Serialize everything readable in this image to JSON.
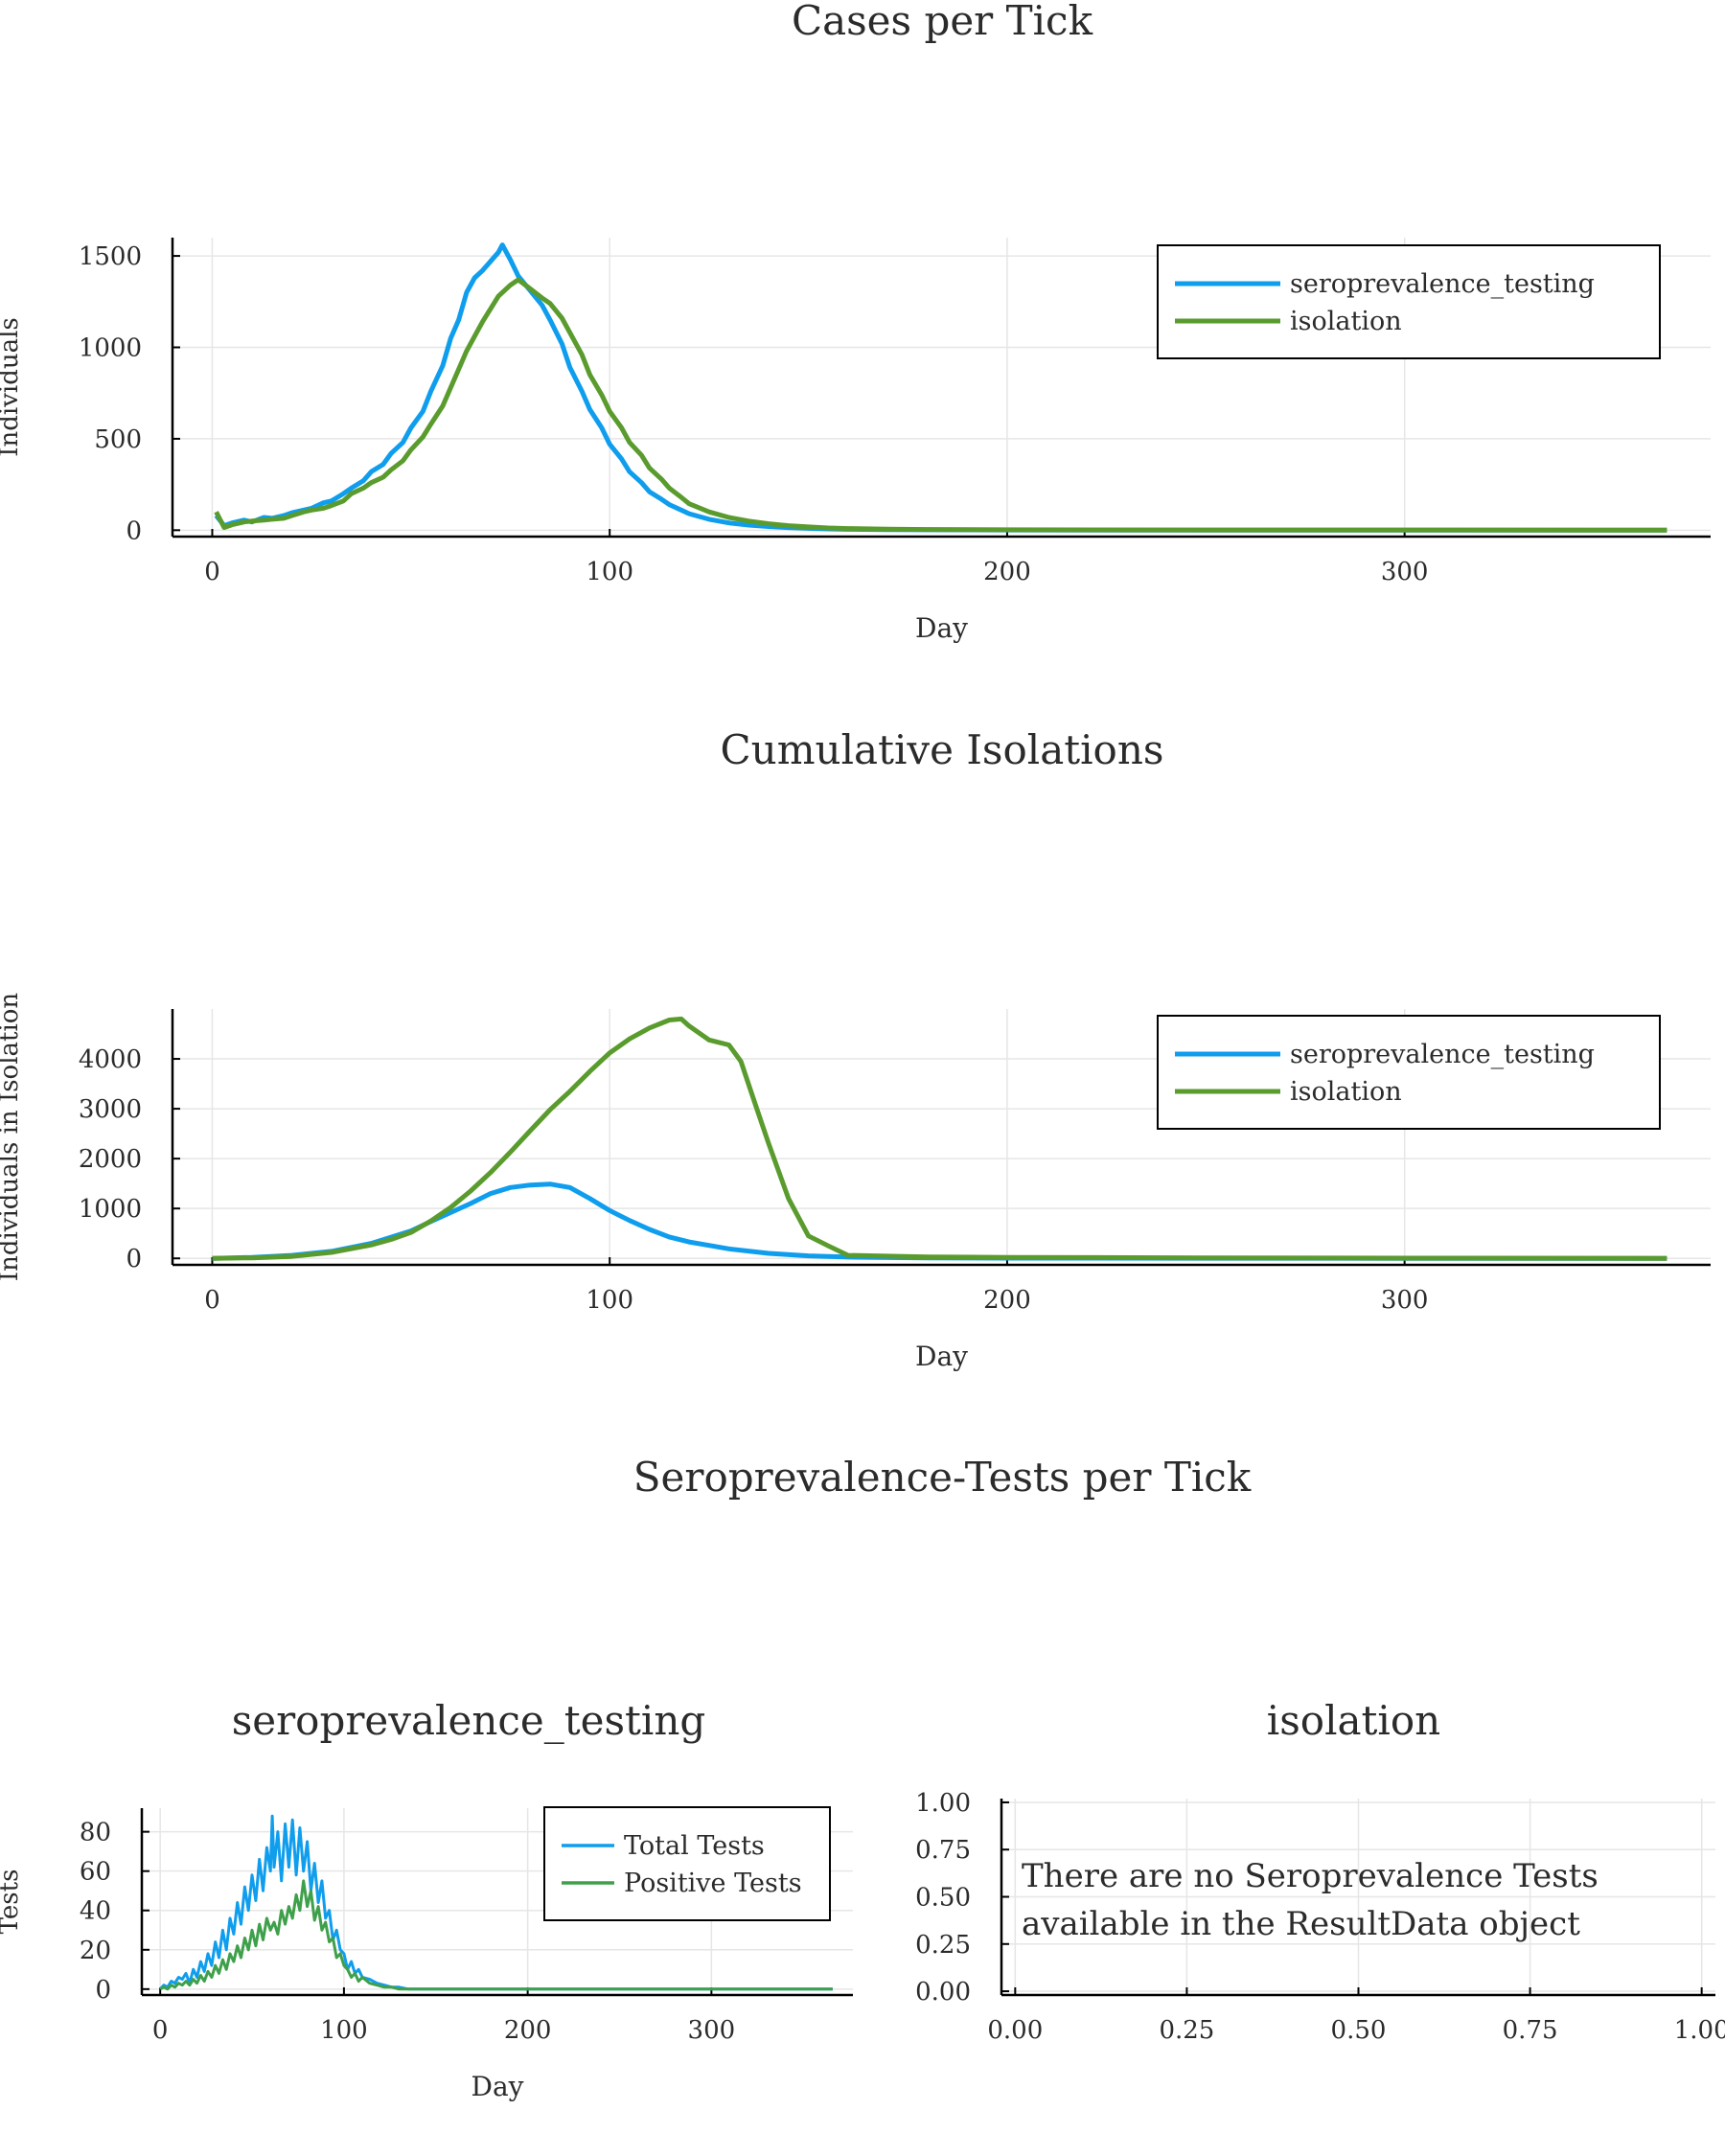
{
  "chart_data": [
    {
      "type": "line",
      "title": "Cases per Tick",
      "xlabel": "Day",
      "ylabel": "Individuals",
      "xlim": [
        -10,
        377
      ],
      "ylim": [
        -35,
        1600
      ],
      "xticks": [
        0,
        100,
        200,
        300
      ],
      "yticks": [
        0,
        500,
        1000,
        1500
      ],
      "xtick_labels": [
        "0",
        "100",
        "200",
        "300"
      ],
      "ytick_labels": [
        "0",
        "500",
        "1000",
        "1500"
      ],
      "grid": true,
      "legend_position": "top-right",
      "series": [
        {
          "name": "seroprevalence_testing",
          "color": "#0f9ded",
          "x": [
            1,
            3,
            5,
            8,
            10,
            13,
            15,
            18,
            20,
            23,
            25,
            28,
            30,
            33,
            35,
            38,
            40,
            43,
            45,
            48,
            50,
            53,
            55,
            58,
            60,
            62,
            64,
            66,
            68,
            70,
            72,
            73,
            75,
            77,
            80,
            83,
            85,
            88,
            90,
            93,
            95,
            98,
            100,
            103,
            105,
            108,
            110,
            113,
            115,
            118,
            120,
            125,
            130,
            135,
            140,
            145,
            150,
            155,
            160,
            170,
            180,
            200,
            250,
            300,
            366
          ],
          "y": [
            80,
            25,
            40,
            55,
            45,
            70,
            65,
            80,
            95,
            110,
            120,
            150,
            160,
            200,
            230,
            270,
            320,
            360,
            420,
            480,
            560,
            650,
            760,
            900,
            1050,
            1150,
            1300,
            1380,
            1420,
            1470,
            1520,
            1560,
            1480,
            1390,
            1310,
            1230,
            1150,
            1020,
            890,
            760,
            660,
            560,
            470,
            390,
            320,
            260,
            210,
            170,
            140,
            110,
            90,
            60,
            40,
            28,
            20,
            14,
            10,
            7,
            5,
            3,
            2,
            1,
            0,
            0,
            0
          ]
        },
        {
          "name": "isolation",
          "color": "#5a9b2e",
          "x": [
            1,
            3,
            5,
            8,
            10,
            13,
            15,
            18,
            20,
            23,
            25,
            28,
            30,
            33,
            35,
            38,
            40,
            43,
            45,
            48,
            50,
            53,
            55,
            58,
            60,
            62,
            64,
            66,
            68,
            70,
            72,
            75,
            77,
            80,
            83,
            85,
            88,
            90,
            93,
            95,
            98,
            100,
            103,
            105,
            108,
            110,
            113,
            115,
            118,
            120,
            125,
            130,
            135,
            140,
            145,
            150,
            155,
            160,
            170,
            180,
            200,
            250,
            300,
            366
          ],
          "y": [
            100,
            15,
            30,
            45,
            50,
            55,
            60,
            65,
            80,
            100,
            110,
            120,
            135,
            160,
            200,
            230,
            260,
            290,
            330,
            380,
            440,
            510,
            580,
            680,
            780,
            880,
            980,
            1060,
            1140,
            1210,
            1280,
            1340,
            1370,
            1320,
            1270,
            1240,
            1160,
            1080,
            960,
            850,
            740,
            650,
            560,
            480,
            410,
            340,
            280,
            230,
            180,
            145,
            100,
            70,
            50,
            35,
            25,
            18,
            12,
            9,
            6,
            4,
            2,
            1,
            1,
            0
          ]
        }
      ]
    },
    {
      "type": "line",
      "title": "Cumulative Isolations",
      "xlabel": "Day",
      "ylabel": "Individuals in Isolation",
      "xlim": [
        -10,
        377
      ],
      "ylim": [
        -130,
        5000
      ],
      "xticks": [
        0,
        100,
        200,
        300
      ],
      "yticks": [
        0,
        1000,
        2000,
        3000,
        4000
      ],
      "xtick_labels": [
        "0",
        "100",
        "200",
        "300"
      ],
      "ytick_labels": [
        "0",
        "1000",
        "2000",
        "3000",
        "4000"
      ],
      "grid": true,
      "legend_position": "top-right",
      "series": [
        {
          "name": "seroprevalence_testing",
          "color": "#0f9ded",
          "x": [
            0,
            10,
            20,
            30,
            40,
            50,
            55,
            60,
            65,
            70,
            75,
            80,
            85,
            90,
            95,
            100,
            105,
            110,
            115,
            120,
            125,
            130,
            140,
            150,
            160,
            180,
            200,
            250,
            300,
            366
          ],
          "y": [
            0,
            20,
            60,
            140,
            300,
            550,
            740,
            920,
            1100,
            1300,
            1420,
            1470,
            1490,
            1420,
            1200,
            960,
            760,
            580,
            430,
            330,
            260,
            190,
            100,
            50,
            25,
            10,
            5,
            2,
            1,
            0
          ]
        },
        {
          "name": "isolation",
          "color": "#5a9b2e",
          "x": [
            0,
            10,
            20,
            30,
            40,
            45,
            50,
            55,
            60,
            65,
            70,
            75,
            80,
            85,
            90,
            95,
            100,
            105,
            110,
            115,
            118,
            120,
            125,
            130,
            133,
            137,
            140,
            145,
            150,
            155,
            160,
            180,
            200,
            250,
            300,
            366
          ],
          "y": [
            0,
            10,
            40,
            120,
            270,
            380,
            520,
            750,
            1020,
            1350,
            1720,
            2130,
            2560,
            2980,
            3350,
            3750,
            4120,
            4400,
            4620,
            4780,
            4800,
            4660,
            4380,
            4280,
            3950,
            3000,
            2300,
            1200,
            450,
            250,
            60,
            30,
            20,
            10,
            5,
            0
          ]
        }
      ]
    },
    {
      "type": "line",
      "title": "seroprevalence_testing",
      "figure_title": "Seroprevalence-Tests per Tick",
      "xlabel": "Day",
      "ylabel": "Tests",
      "xlim": [
        -10,
        377
      ],
      "ylim": [
        -3,
        92
      ],
      "xticks": [
        0,
        100,
        200,
        300
      ],
      "yticks": [
        0,
        20,
        40,
        60,
        80
      ],
      "xtick_labels": [
        "0",
        "100",
        "200",
        "300"
      ],
      "ytick_labels": [
        "0",
        "20",
        "40",
        "60",
        "80"
      ],
      "grid": true,
      "legend_position": "top-right",
      "series": [
        {
          "name": "Total Tests",
          "color": "#0f9ded",
          "x": [
            0,
            2,
            4,
            6,
            8,
            10,
            12,
            14,
            16,
            18,
            20,
            22,
            24,
            26,
            28,
            30,
            32,
            34,
            36,
            38,
            40,
            42,
            44,
            46,
            48,
            50,
            52,
            54,
            56,
            58,
            60,
            61,
            62,
            64,
            66,
            68,
            70,
            72,
            74,
            76,
            78,
            80,
            82,
            84,
            86,
            88,
            90,
            92,
            94,
            96,
            98,
            100,
            102,
            104,
            106,
            108,
            110,
            114,
            118,
            122,
            126,
            130,
            135,
            140,
            150,
            160,
            200,
            250,
            300,
            366
          ],
          "y": [
            0,
            2,
            1,
            4,
            3,
            6,
            5,
            8,
            3,
            10,
            6,
            14,
            9,
            18,
            12,
            24,
            16,
            30,
            20,
            36,
            28,
            44,
            33,
            52,
            40,
            58,
            45,
            66,
            50,
            72,
            60,
            88,
            62,
            80,
            55,
            84,
            62,
            86,
            58,
            82,
            60,
            75,
            50,
            64,
            44,
            55,
            36,
            40,
            25,
            30,
            20,
            18,
            10,
            14,
            8,
            10,
            6,
            5,
            3,
            2,
            1,
            1,
            0,
            0,
            0,
            0,
            0,
            0,
            0,
            0
          ]
        },
        {
          "name": "Positive Tests",
          "color": "#3ea04a",
          "x": [
            0,
            2,
            4,
            6,
            8,
            10,
            12,
            14,
            16,
            18,
            20,
            22,
            24,
            26,
            28,
            30,
            32,
            34,
            36,
            38,
            40,
            42,
            44,
            46,
            48,
            50,
            52,
            54,
            56,
            58,
            60,
            62,
            64,
            66,
            68,
            70,
            72,
            74,
            76,
            78,
            80,
            82,
            84,
            86,
            88,
            90,
            92,
            94,
            96,
            98,
            100,
            102,
            104,
            106,
            108,
            110,
            114,
            118,
            122,
            126,
            130,
            135,
            140,
            150,
            160,
            200,
            250,
            300,
            366
          ],
          "y": [
            0,
            1,
            0,
            2,
            1,
            3,
            2,
            4,
            2,
            5,
            3,
            7,
            4,
            9,
            6,
            12,
            8,
            15,
            10,
            18,
            14,
            22,
            16,
            26,
            20,
            30,
            22,
            33,
            25,
            36,
            30,
            34,
            28,
            40,
            33,
            42,
            36,
            48,
            40,
            55,
            42,
            50,
            35,
            42,
            30,
            34,
            24,
            26,
            16,
            18,
            12,
            10,
            6,
            8,
            4,
            6,
            3,
            2,
            1,
            1,
            0,
            0,
            0,
            0,
            0,
            0,
            0,
            0,
            0
          ]
        }
      ]
    },
    {
      "type": "line",
      "title": "isolation",
      "xlabel": "",
      "ylabel": "",
      "xlim": [
        -0.02,
        1.02
      ],
      "ylim": [
        -0.02,
        1.02
      ],
      "xticks": [
        0.0,
        0.25,
        0.5,
        0.75,
        1.0
      ],
      "yticks": [
        0.0,
        0.25,
        0.5,
        0.75,
        1.0
      ],
      "xtick_labels": [
        "0.00",
        "0.25",
        "0.50",
        "0.75",
        "1.00"
      ],
      "ytick_labels": [
        "0.00",
        "0.25",
        "0.50",
        "0.75",
        "1.00"
      ],
      "grid": true,
      "series": [],
      "annotation_lines": [
        "There are no Seroprevalence Tests",
        " available in the ResultData object"
      ]
    }
  ]
}
